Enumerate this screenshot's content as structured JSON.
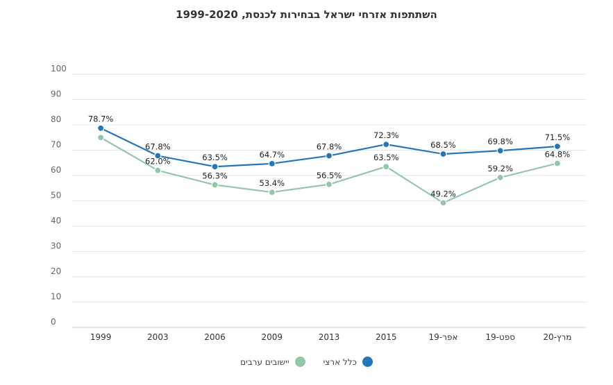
{
  "chart_data": {
    "type": "line",
    "title": "השתתפות אזרחי ישראל בבחירות לכנסת, 1999-2020",
    "categories": [
      "1999",
      "2003",
      "2006",
      "2009",
      "2013",
      "2015",
      "אפר-19",
      "ספט-19",
      "מרץ-20"
    ],
    "ylim": [
      0,
      100
    ],
    "yticks": [
      0,
      10,
      20,
      30,
      40,
      50,
      60,
      70,
      80,
      90,
      100
    ],
    "grid": true,
    "legend_position": "bottom",
    "series": [
      {
        "name": "כלל ארצי",
        "color": "#2676b6",
        "values": [
          78.7,
          67.8,
          63.5,
          64.7,
          67.8,
          72.3,
          68.5,
          69.8,
          71.5
        ],
        "labels": [
          "78.7%",
          "67.8%",
          "63.5%",
          "64.7%",
          "67.8%",
          "72.3%",
          "68.5%",
          "69.8%",
          "71.5%"
        ]
      },
      {
        "name": "יישובים ערבים",
        "color": "#94c7a9",
        "values": [
          75.0,
          62.0,
          56.3,
          53.4,
          56.5,
          63.5,
          49.2,
          59.2,
          64.8
        ],
        "labels": [
          "",
          "62.0%",
          "56.3%",
          "53.4%",
          "56.5%",
          "63.5%",
          "49.2%",
          "59.2%",
          "64.8%"
        ]
      }
    ]
  }
}
